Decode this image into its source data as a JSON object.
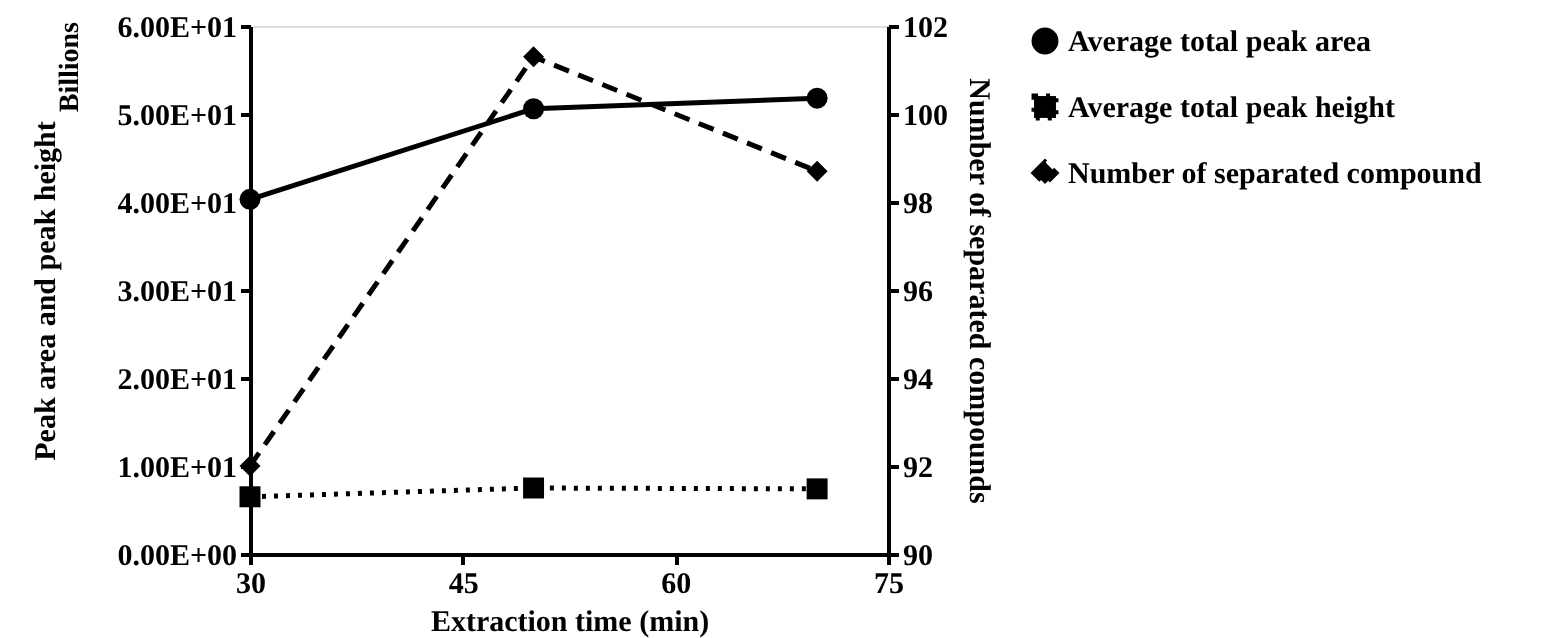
{
  "chart_data": {
    "type": "line",
    "xlabel": "Extraction time (min)",
    "ylabel": "Peak area and peak height",
    "y2label": "Number of separated compounds",
    "annotations": [
      "Billions"
    ],
    "x": [
      30,
      50,
      70
    ],
    "xlim": [
      30,
      75
    ],
    "xticks": [
      30,
      45,
      60,
      75
    ],
    "ylim": [
      0,
      60
    ],
    "yticks": [
      {
        "value": 0,
        "label": "0.00E+00"
      },
      {
        "value": 10,
        "label": "1.00E+01"
      },
      {
        "value": 20,
        "label": "2.00E+01"
      },
      {
        "value": 30,
        "label": "3.00E+01"
      },
      {
        "value": 40,
        "label": "4.00E+01"
      },
      {
        "value": 50,
        "label": "5.00E+01"
      },
      {
        "value": 60,
        "label": "6.00E+01"
      }
    ],
    "y2lim": [
      90,
      102
    ],
    "y2ticks": [
      90,
      92,
      94,
      96,
      98,
      100,
      102
    ],
    "legend": "right",
    "grid": false,
    "series": [
      {
        "name": "Average total peak area",
        "color": "#000000",
        "values": [
          40.3,
          50.6,
          51.8
        ],
        "marker": "circle",
        "line_style": "solid"
      },
      {
        "name": "Average total peak height",
        "color": "#000000",
        "values": [
          6.5,
          7.5,
          7.4
        ],
        "marker": "square",
        "line_style": "dotted"
      },
      {
        "name": "Number of separated compound",
        "color": "#000000",
        "values": [
          92.0,
          101.3,
          98.7
        ],
        "marker": "diamond",
        "line_style": "dashed",
        "axis": "y2"
      }
    ]
  }
}
